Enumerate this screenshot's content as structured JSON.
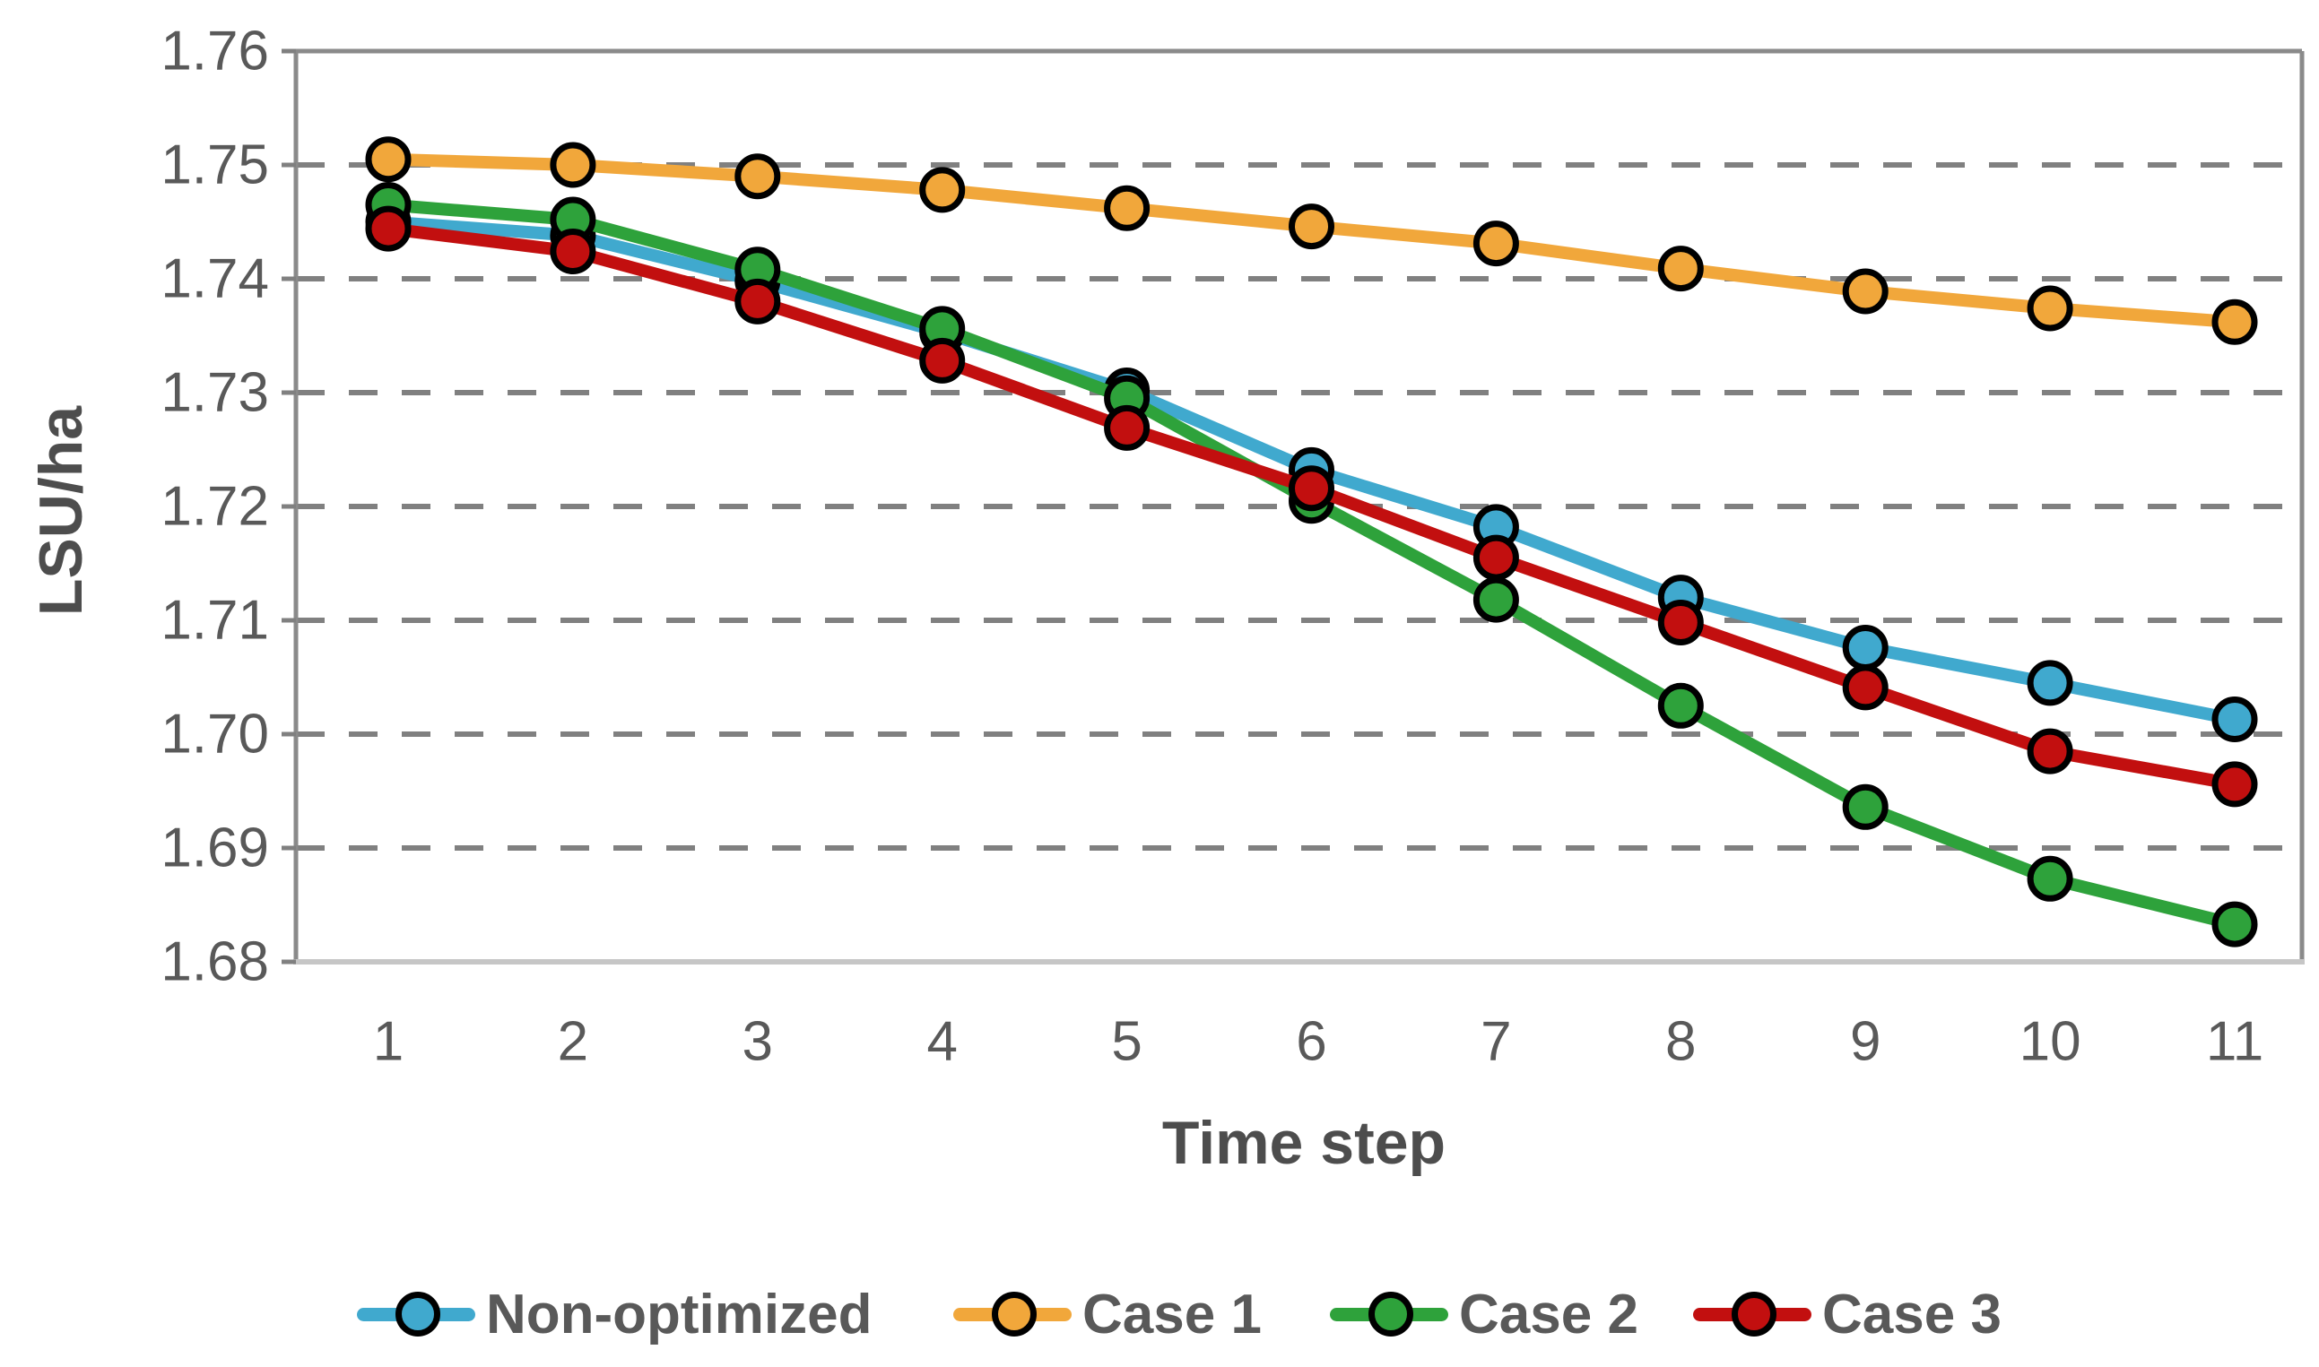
{
  "chart_data": {
    "type": "line",
    "title": "",
    "xlabel": "Time step",
    "ylabel": "LSU/ha",
    "x": [
      1,
      2,
      3,
      4,
      5,
      6,
      7,
      8,
      9,
      10,
      11
    ],
    "x_tick_labels": [
      "1",
      "2",
      "3",
      "4",
      "5",
      "6",
      "7",
      "8",
      "9",
      "10",
      "11"
    ],
    "ylim": [
      1.68,
      1.76
    ],
    "ytick_step": 0.01,
    "y_tick_labels": [
      "1.76",
      "1.75",
      "1.74",
      "1.73",
      "1.72",
      "1.71",
      "1.70",
      "1.69",
      "1.68"
    ],
    "grid": "horizontal-dashed",
    "legend_position": "bottom",
    "series": [
      {
        "name": "Non-optimized",
        "color": "#40A9CE",
        "values": [
          1.745,
          1.7438,
          1.7398,
          1.7353,
          1.7302,
          1.7232,
          1.7182,
          1.712,
          1.7076,
          1.7045,
          1.7013
        ]
      },
      {
        "name": "Case 1",
        "color": "#F1A73B",
        "values": [
          1.7505,
          1.75,
          1.749,
          1.7478,
          1.7462,
          1.7446,
          1.7431,
          1.7409,
          1.7389,
          1.7374,
          1.7362
        ]
      },
      {
        "name": "Case 2",
        "color": "#2EA23B",
        "values": [
          1.7465,
          1.7452,
          1.7408,
          1.7356,
          1.7295,
          1.7205,
          1.7118,
          1.7025,
          1.6936,
          1.6873,
          1.6833
        ]
      },
      {
        "name": "Case 3",
        "color": "#C20F0F",
        "values": [
          1.7444,
          1.7424,
          1.738,
          1.7328,
          1.7269,
          1.7216,
          1.7155,
          1.7098,
          1.7041,
          1.6985,
          1.6956
        ]
      }
    ]
  },
  "colors": {
    "gridline": "#808080",
    "plot_border": "#8A8A8A",
    "bottom_axis": "#C6C6C6",
    "tick_text": "#595959",
    "title_text": "#4D4D4D",
    "marker_outline": "#000000"
  }
}
